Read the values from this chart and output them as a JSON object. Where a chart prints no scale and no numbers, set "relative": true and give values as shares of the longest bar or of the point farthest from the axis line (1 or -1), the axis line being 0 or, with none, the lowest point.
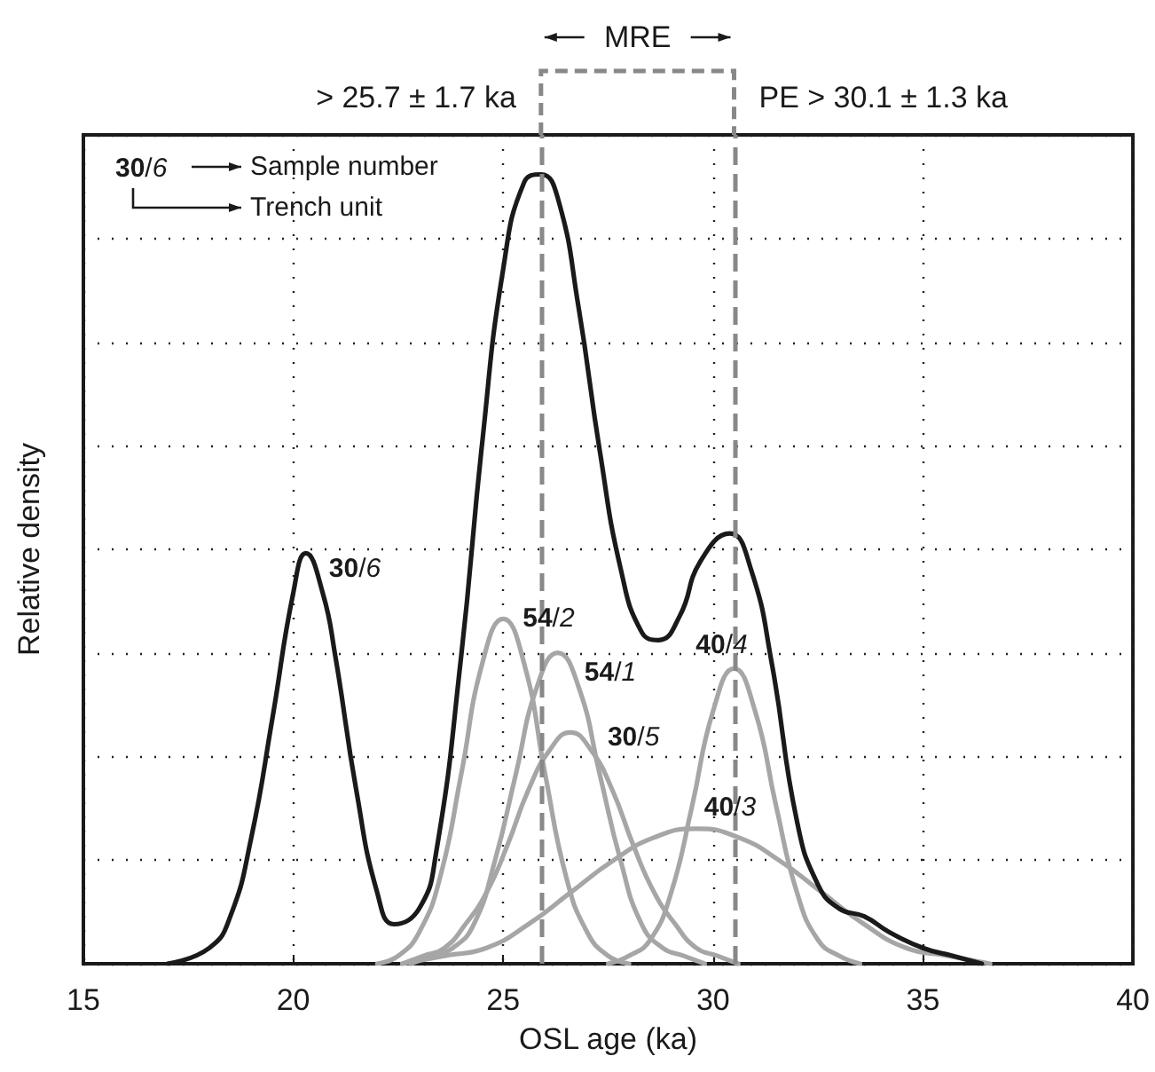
{
  "chart_data": {
    "type": "line",
    "relative": true,
    "xlabel": "OSL age (ka)",
    "ylabel": "Relative density",
    "xlim": [
      15,
      40
    ],
    "xticks": [
      15,
      20,
      25,
      30,
      35,
      40
    ],
    "grid": true,
    "line_style": "solid",
    "ref_lines": [
      {
        "axis": "x",
        "value": 25.9,
        "color": "#888888",
        "line_style": "dashed"
      },
      {
        "axis": "x",
        "value": 30.5,
        "color": "#888888",
        "line_style": "dashed"
      }
    ],
    "annotations": [
      {
        "text": "30/6",
        "x": 20.3,
        "y": 0.52
      },
      "MRE",
      "> 25.7 ± 1.7 ka",
      "PE > 30.1 ± 1.3 ka",
      "30/6",
      "Sample number",
      "Trench unit"
    ],
    "series": [
      {
        "name": "54/2",
        "color": "#a6a6a6",
        "x": [
          22,
          22.5,
          23,
          23.5,
          24,
          24.5,
          25,
          25.5,
          26,
          26.5,
          27,
          27.5,
          28
        ],
        "values": [
          0,
          0.01,
          0.04,
          0.11,
          0.24,
          0.38,
          0.437,
          0.38,
          0.24,
          0.11,
          0.04,
          0.01,
          0
        ]
      },
      {
        "name": "54/1",
        "color": "#a6a6a6",
        "x": [
          22.8,
          23.3,
          23.8,
          24.3,
          24.8,
          25.3,
          25.8,
          26.3,
          26.8,
          27.3,
          27.8,
          28.3,
          28.8,
          29.3,
          29.8
        ],
        "values": [
          0,
          0.01,
          0.02,
          0.05,
          0.13,
          0.24,
          0.35,
          0.394,
          0.35,
          0.24,
          0.13,
          0.05,
          0.02,
          0.01,
          0
        ]
      },
      {
        "name": "30/5",
        "color": "#a6a6a6",
        "x": [
          22.6,
          23.1,
          23.6,
          24.1,
          24.6,
          25.1,
          25.6,
          26.1,
          26.6,
          27.1,
          27.6,
          28.1,
          28.6,
          29.1,
          29.6,
          30.1,
          30.6
        ],
        "values": [
          0,
          0.01,
          0.02,
          0.05,
          0.09,
          0.15,
          0.22,
          0.27,
          0.293,
          0.27,
          0.22,
          0.15,
          0.09,
          0.05,
          0.02,
          0.01,
          0
        ]
      },
      {
        "name": "40/4",
        "color": "#a6a6a6",
        "x": [
          27.5,
          28,
          28.5,
          29,
          29.5,
          30,
          30.5,
          31,
          31.5,
          32,
          32.5,
          33,
          33.5
        ],
        "values": [
          0,
          0.01,
          0.03,
          0.09,
          0.2,
          0.32,
          0.374,
          0.32,
          0.2,
          0.09,
          0.03,
          0.01,
          0
        ]
      },
      {
        "name": "40/3",
        "color": "#a6a6a6",
        "x": [
          22.6,
          23.6,
          24.6,
          25.6,
          26.6,
          27.6,
          28.6,
          29.6,
          30.6,
          31.6,
          32.6,
          33.6,
          34.6,
          35.6,
          36.6
        ],
        "values": [
          0,
          0.01,
          0.02,
          0.05,
          0.09,
          0.13,
          0.16,
          0.171,
          0.16,
          0.13,
          0.09,
          0.05,
          0.02,
          0.01,
          0
        ]
      },
      {
        "color": "#1a1a1a",
        "x": [
          17,
          18,
          18.5,
          19,
          19.5,
          20,
          20.3,
          20.7,
          21,
          21.5,
          22,
          22.4,
          23,
          23.4,
          24,
          24.5,
          25,
          25.5,
          25.9,
          26.3,
          26.8,
          27.3,
          27.8,
          28.3,
          28.7,
          29.2,
          29.7,
          30.4,
          30.9,
          31.4,
          32,
          32.5,
          33,
          33.6,
          34.2,
          35,
          35.7,
          36.4
        ],
        "values": [
          0,
          0.02,
          0.06,
          0.16,
          0.31,
          0.47,
          0.52,
          0.47,
          0.39,
          0.22,
          0.09,
          0.05,
          0.07,
          0.14,
          0.39,
          0.66,
          0.88,
          0.99,
          1,
          0.97,
          0.83,
          0.65,
          0.5,
          0.42,
          0.41,
          0.44,
          0.51,
          0.545,
          0.5,
          0.38,
          0.18,
          0.1,
          0.07,
          0.06,
          0.04,
          0.02,
          0.01,
          0
        ]
      }
    ]
  }
}
